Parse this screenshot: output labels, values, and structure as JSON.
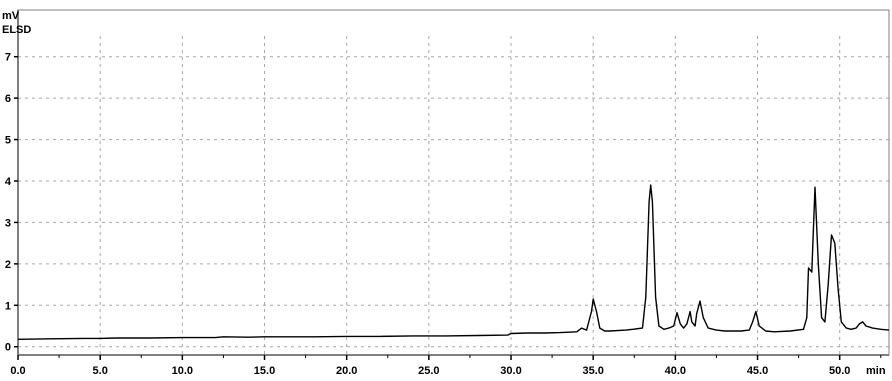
{
  "chart_data": {
    "type": "line",
    "title": "",
    "detector_label": "ELSD",
    "xlabel": "min",
    "ylabel": "mV",
    "xlim": [
      0,
      53
    ],
    "ylim": [
      -0.2,
      7.5
    ],
    "x_ticks": [
      0.0,
      5.0,
      10.0,
      15.0,
      20.0,
      25.0,
      30.0,
      35.0,
      40.0,
      45.0,
      50.0
    ],
    "x_tick_labels": [
      "0.0",
      "5.0",
      "10.0",
      "15.0",
      "20.0",
      "25.0",
      "30.0",
      "35.0",
      "40.0",
      "45.0",
      "50.0"
    ],
    "y_ticks": [
      0,
      1,
      2,
      3,
      4,
      5,
      6,
      7
    ],
    "y_tick_labels": [
      "0",
      "1",
      "2",
      "3",
      "4",
      "5",
      "6",
      "7"
    ],
    "grid": true,
    "line_color": "#000000",
    "grid_color": "#a8a8a8",
    "series": [
      {
        "x": [
          0.0,
          2.0,
          4.0,
          5.0,
          6.0,
          8.0,
          10.0,
          12.0,
          12.5,
          14.0,
          15.0,
          16.0,
          18.0,
          20.0,
          22.0,
          24.0,
          25.0,
          26.0,
          28.0,
          29.8,
          30.0,
          31.0,
          32.0,
          33.0,
          34.0,
          34.3,
          34.6,
          34.9,
          35.0,
          35.2,
          35.4,
          35.7,
          36.0,
          37.0,
          38.0,
          38.2,
          38.4,
          38.5,
          38.6,
          38.8,
          39.0,
          39.3,
          39.6,
          39.9,
          40.1,
          40.3,
          40.5,
          40.7,
          40.9,
          41.0,
          41.2,
          41.3,
          41.5,
          41.7,
          42.0,
          42.5,
          43.0,
          44.0,
          44.5,
          44.7,
          44.9,
          45.1,
          45.5,
          46.0,
          47.0,
          47.8,
          48.0,
          48.1,
          48.3,
          48.5,
          48.7,
          48.9,
          49.1,
          49.3,
          49.5,
          49.7,
          49.9,
          50.1,
          50.4,
          50.7,
          51.0,
          51.2,
          51.4,
          51.6,
          52.0,
          52.5,
          53.0
        ],
        "y": [
          0.18,
          0.19,
          0.2,
          0.2,
          0.21,
          0.21,
          0.22,
          0.22,
          0.24,
          0.23,
          0.24,
          0.24,
          0.24,
          0.25,
          0.25,
          0.26,
          0.26,
          0.26,
          0.27,
          0.28,
          0.32,
          0.33,
          0.33,
          0.34,
          0.36,
          0.45,
          0.4,
          0.85,
          1.15,
          0.85,
          0.45,
          0.38,
          0.38,
          0.4,
          0.45,
          1.2,
          3.5,
          3.9,
          3.5,
          1.2,
          0.5,
          0.42,
          0.45,
          0.5,
          0.82,
          0.55,
          0.45,
          0.55,
          0.85,
          0.6,
          0.5,
          0.8,
          1.1,
          0.7,
          0.45,
          0.4,
          0.38,
          0.38,
          0.4,
          0.6,
          0.85,
          0.5,
          0.38,
          0.36,
          0.38,
          0.42,
          0.7,
          1.9,
          1.8,
          3.85,
          2.0,
          0.7,
          0.6,
          1.5,
          2.7,
          2.5,
          1.4,
          0.6,
          0.45,
          0.42,
          0.45,
          0.55,
          0.6,
          0.5,
          0.45,
          0.42,
          0.4
        ]
      }
    ]
  }
}
